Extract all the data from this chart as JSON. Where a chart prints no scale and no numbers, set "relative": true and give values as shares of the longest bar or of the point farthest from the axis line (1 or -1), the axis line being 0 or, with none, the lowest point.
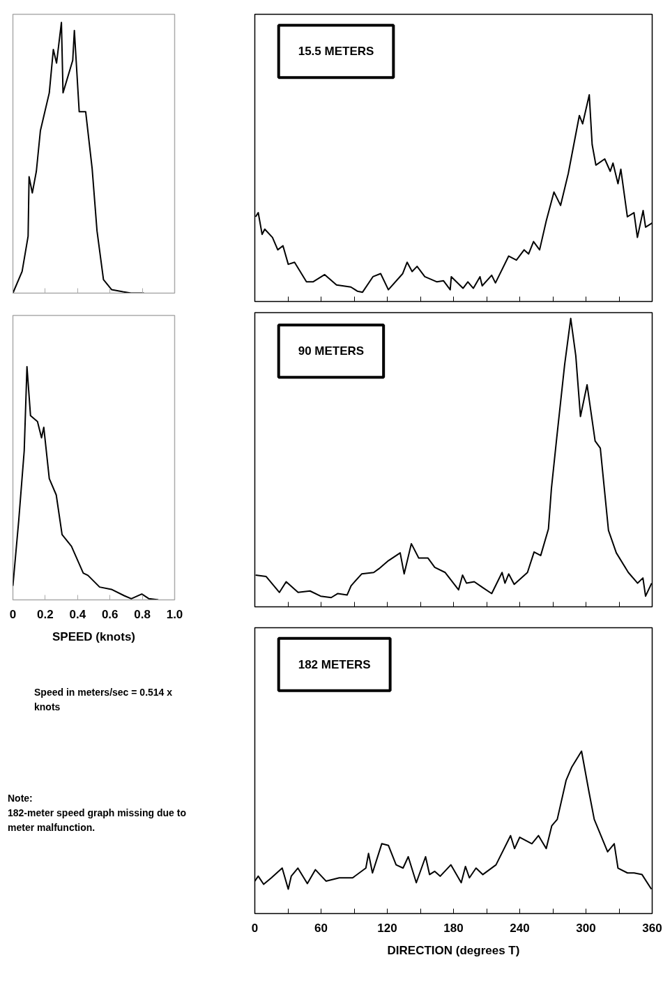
{
  "chart_data": [
    {
      "type": "line",
      "relative": true,
      "xlim": [
        0,
        1.0
      ],
      "xticks": [
        0,
        0.2,
        0.4,
        0.6,
        0.8,
        1.0
      ],
      "tick_labels": false,
      "series": [
        {
          "color": "#000000",
          "x": [
            0,
            0.057,
            0.094,
            0.1,
            0.12,
            0.145,
            0.17,
            0.225,
            0.25,
            0.27,
            0.3,
            0.31,
            0.37,
            0.38,
            0.41,
            0.45,
            0.49,
            0.52,
            0.56,
            0.61,
            0.68,
            0.73,
            0.81
          ],
          "values": [
            0,
            0.08,
            0.21,
            0.43,
            0.37,
            0.45,
            0.6,
            0.74,
            0.9,
            0.85,
            1.0,
            0.74,
            0.86,
            0.97,
            0.67,
            0.67,
            0.46,
            0.23,
            0.05,
            0.013,
            0.005,
            0,
            0
          ]
        }
      ]
    },
    {
      "type": "line",
      "title": "15.5 METERS",
      "relative": true,
      "xlim": [
        0,
        360
      ],
      "xticks": [
        0,
        {
          "value": 30,
          "label": null
        },
        60,
        {
          "value": 90,
          "label": null
        },
        120,
        {
          "value": 150,
          "label": null
        },
        180,
        {
          "value": 210,
          "label": null
        },
        240,
        {
          "value": 270,
          "label": null
        },
        300,
        {
          "value": 330,
          "label": null
        },
        360
      ],
      "tick_labels": false,
      "series": [
        {
          "color": "#000000",
          "x": [
            0.7,
            3.1,
            6.6,
            9,
            16,
            20.8,
            25.5,
            30.3,
            36,
            46.8,
            52.7,
            63.3,
            74,
            87,
            92.9,
            97.6,
            107,
            114,
            121,
            134,
            138,
            142.5,
            147,
            154,
            165,
            171,
            177,
            178,
            188.6,
            193,
            198,
            204,
            206,
            214.6,
            218,
            230,
            237,
            244,
            248,
            252.5,
            258,
            264,
            271,
            277,
            284,
            294,
            297,
            303,
            305.6,
            309,
            317,
            322,
            324.5,
            329,
            331.6,
            337.5,
            343.5,
            346.6,
            351.8,
            354,
            360
          ],
          "values": [
            0.41,
            0.43,
            0.325,
            0.35,
            0.31,
            0.25,
            0.27,
            0.18,
            0.19,
            0.095,
            0.095,
            0.13,
            0.08,
            0.07,
            0.05,
            0.045,
            0.12,
            0.135,
            0.057,
            0.135,
            0.19,
            0.145,
            0.17,
            0.12,
            0.095,
            0.1,
            0.057,
            0.12,
            0.064,
            0.095,
            0.064,
            0.12,
            0.076,
            0.127,
            0.09,
            0.22,
            0.2,
            0.25,
            0.23,
            0.29,
            0.25,
            0.39,
            0.53,
            0.465,
            0.62,
            0.9,
            0.86,
            1.0,
            0.76,
            0.66,
            0.69,
            0.63,
            0.67,
            0.57,
            0.64,
            0.41,
            0.43,
            0.31,
            0.44,
            0.36,
            0.38
          ]
        }
      ]
    },
    {
      "type": "line",
      "xlabel": "SPEED (knots)",
      "relative": true,
      "xlim": [
        0,
        1.0
      ],
      "xticks": [
        0,
        0.2,
        0.4,
        0.6,
        0.8,
        {
          "value": 1.0,
          "label": "1.0"
        }
      ],
      "tick_labels": "x",
      "annotations": [
        "Speed in meters/sec = 0.514 x knots",
        "Note:\n182-meter speed graph missing due to meter malfunction."
      ],
      "series": [
        {
          "color": "#000000",
          "x": [
            0,
            0.036,
            0.07,
            0.087,
            0.109,
            0.152,
            0.177,
            0.191,
            0.225,
            0.268,
            0.304,
            0.362,
            0.435,
            0.464,
            0.536,
            0.609,
            0.688,
            0.732,
            0.797,
            0.841,
            0.899
          ],
          "values": [
            0.06,
            0.34,
            0.64,
            1.0,
            0.79,
            0.765,
            0.695,
            0.74,
            0.52,
            0.45,
            0.28,
            0.23,
            0.115,
            0.105,
            0.055,
            0.045,
            0.018,
            0.005,
            0.025,
            0.005,
            0
          ]
        }
      ]
    },
    {
      "type": "line",
      "title": "90 METERS",
      "relative": true,
      "xlim": [
        0,
        360
      ],
      "xticks": [
        0,
        {
          "value": 30,
          "label": null
        },
        60,
        {
          "value": 90,
          "label": null
        },
        120,
        {
          "value": 150,
          "label": null
        },
        180,
        {
          "value": 210,
          "label": null
        },
        240,
        {
          "value": 270,
          "label": null
        },
        300,
        {
          "value": 330,
          "label": null
        },
        360
      ],
      "tick_labels": false,
      "series": [
        {
          "color": "#000000",
          "x": [
            0.7,
            10.3,
            22.3,
            28.4,
            39.2,
            50,
            59.6,
            69.2,
            75.2,
            83.6,
            87.2,
            96.8,
            107.7,
            112.4,
            121,
            131.7,
            135.3,
            141.8,
            148.5,
            156.9,
            163,
            172.5,
            184.6,
            188.2,
            191.8,
            198.8,
            206,
            214.6,
            224,
            226.6,
            230,
            235,
            247,
            253,
            259,
            266,
            268.7,
            273.5,
            280.7,
            286.2,
            290.8,
            295,
            301,
            308.3,
            313,
            320.4,
            327.5,
            338.4,
            346.8,
            351.6,
            354,
            359.5
          ],
          "values": [
            0.11,
            0.105,
            0.05,
            0.087,
            0.05,
            0.055,
            0.037,
            0.032,
            0.046,
            0.041,
            0.073,
            0.114,
            0.119,
            0.132,
            0.16,
            0.187,
            0.114,
            0.219,
            0.169,
            0.169,
            0.137,
            0.119,
            0.059,
            0.11,
            0.082,
            0.087,
            0.068,
            0.046,
            0.119,
            0.082,
            0.114,
            0.078,
            0.119,
            0.19,
            0.178,
            0.27,
            0.41,
            0.585,
            0.84,
            1.0,
            0.87,
            0.66,
            0.77,
            0.575,
            0.55,
            0.265,
            0.187,
            0.119,
            0.082,
            0.1,
            0.037,
            0.082
          ]
        }
      ]
    },
    {
      "type": "line",
      "title": "182 METERS",
      "xlabel": "DIRECTION (degrees T)",
      "relative": true,
      "xlim": [
        0,
        360
      ],
      "xticks": [
        0,
        {
          "value": 30,
          "label": null
        },
        60,
        {
          "value": 90,
          "label": null
        },
        120,
        {
          "value": 150,
          "label": null
        },
        180,
        {
          "value": 210,
          "label": null
        },
        240,
        {
          "value": 270,
          "label": null
        },
        300,
        {
          "value": 330,
          "label": null
        },
        360
      ],
      "tick_labels": "x",
      "series": [
        {
          "color": "#000000",
          "x": [
            0,
            3.1,
            8,
            15,
            24.8,
            30.3,
            33,
            39,
            47.6,
            54.9,
            64.5,
            76.5,
            88.6,
            100.6,
            103,
            106.6,
            115,
            121,
            128,
            134.3,
            139,
            146.3,
            154.7,
            158.3,
            163,
            168,
            177.6,
            187,
            190.8,
            194.4,
            200.4,
            206.5,
            218.5,
            231.7,
            235.3,
            240,
            251,
            257,
            264,
            269,
            274,
            282,
            287,
            296,
            302.7,
            307.5,
            319.6,
            325.6,
            329,
            337.6,
            343.6,
            350.8,
            359.3
          ],
          "values": [
            0.2,
            0.23,
            0.18,
            0.22,
            0.28,
            0.15,
            0.23,
            0.28,
            0.185,
            0.27,
            0.2,
            0.22,
            0.22,
            0.28,
            0.37,
            0.25,
            0.43,
            0.42,
            0.3,
            0.28,
            0.35,
            0.19,
            0.35,
            0.24,
            0.26,
            0.23,
            0.3,
            0.19,
            0.29,
            0.22,
            0.28,
            0.24,
            0.3,
            0.48,
            0.4,
            0.47,
            0.43,
            0.48,
            0.4,
            0.54,
            0.58,
            0.82,
            0.9,
            1.0,
            0.75,
            0.58,
            0.38,
            0.43,
            0.28,
            0.25,
            0.25,
            0.24,
            0.15
          ]
        }
      ]
    }
  ]
}
